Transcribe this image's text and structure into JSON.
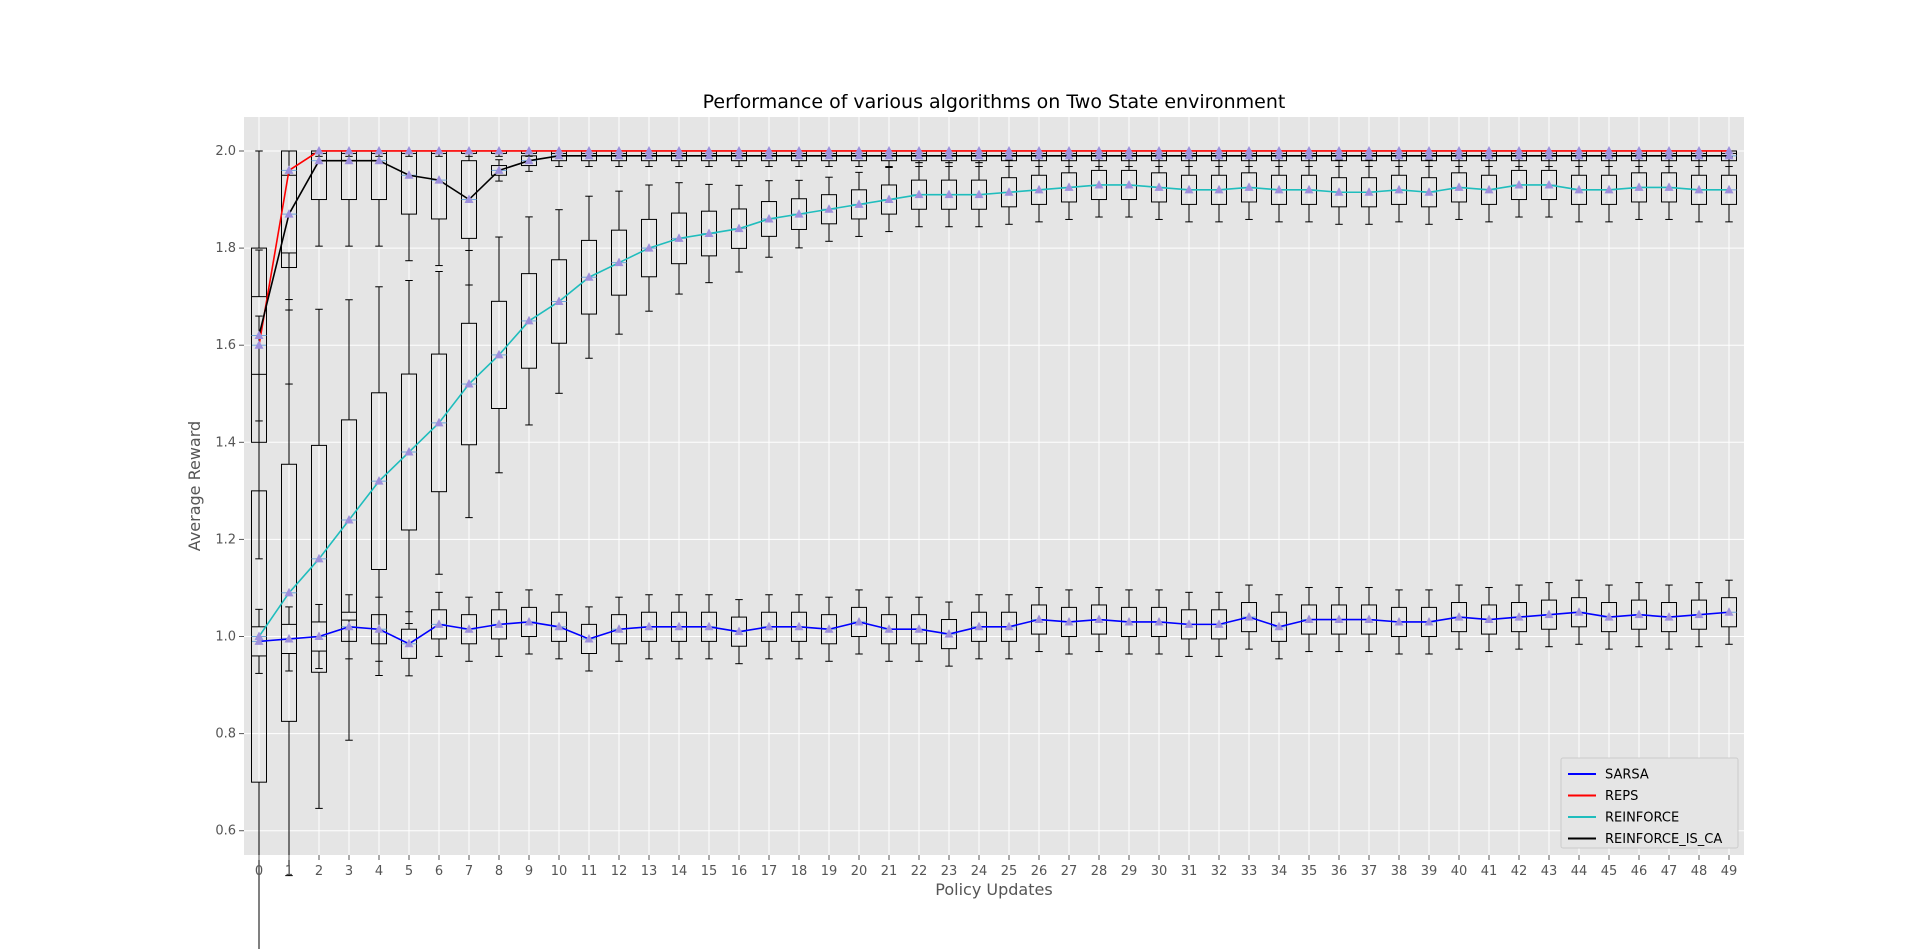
{
  "chart_data": {
    "type": "line",
    "title": "Performance of various algorithms on Two State environment",
    "xlabel": "Policy Updates",
    "ylabel": "Average Reward",
    "x": [
      0,
      1,
      2,
      3,
      4,
      5,
      6,
      7,
      8,
      9,
      10,
      11,
      12,
      13,
      14,
      15,
      16,
      17,
      18,
      19,
      20,
      21,
      22,
      23,
      24,
      25,
      26,
      27,
      28,
      29,
      30,
      31,
      32,
      33,
      34,
      35,
      36,
      37,
      38,
      39,
      40,
      41,
      42,
      43,
      44,
      45,
      46,
      47,
      48,
      49
    ],
    "ylim": [
      0.55,
      2.07
    ],
    "yticks": [
      0.6,
      0.8,
      1.0,
      1.2,
      1.4,
      1.6,
      1.8,
      2.0
    ],
    "grid": true,
    "background": "#e5e5e5",
    "legend_position": "bottom-right",
    "boxplots_per_x": true,
    "mean_marker": "triangle",
    "mean_marker_color": "#9e90dd",
    "median_color": "#6fa8dc",
    "series": [
      {
        "name": "SARSA",
        "color": "#0000ff",
        "values": [
          0.99,
          0.995,
          1.0,
          1.02,
          1.015,
          0.985,
          1.025,
          1.015,
          1.025,
          1.03,
          1.02,
          0.995,
          1.015,
          1.02,
          1.02,
          1.02,
          1.01,
          1.02,
          1.02,
          1.015,
          1.03,
          1.015,
          1.015,
          1.005,
          1.02,
          1.02,
          1.035,
          1.03,
          1.035,
          1.03,
          1.03,
          1.025,
          1.025,
          1.04,
          1.02,
          1.035,
          1.035,
          1.035,
          1.03,
          1.03,
          1.04,
          1.035,
          1.04,
          1.045,
          1.05,
          1.04,
          1.045,
          1.04,
          1.045,
          1.05
        ]
      },
      {
        "name": "REPS",
        "color": "#ff0000",
        "values": [
          1.6,
          1.96,
          2.0,
          2.0,
          2.0,
          2.0,
          2.0,
          2.0,
          2.0,
          2.0,
          2.0,
          2.0,
          2.0,
          2.0,
          2.0,
          2.0,
          2.0,
          2.0,
          2.0,
          2.0,
          2.0,
          2.0,
          2.0,
          2.0,
          2.0,
          2.0,
          2.0,
          2.0,
          2.0,
          2.0,
          2.0,
          2.0,
          2.0,
          2.0,
          2.0,
          2.0,
          2.0,
          2.0,
          2.0,
          2.0,
          2.0,
          2.0,
          2.0,
          2.0,
          2.0,
          2.0,
          2.0,
          2.0,
          2.0,
          2.0
        ]
      },
      {
        "name": "REINFORCE",
        "color": "#1fbdbd",
        "values": [
          1.0,
          1.09,
          1.16,
          1.24,
          1.32,
          1.38,
          1.44,
          1.52,
          1.58,
          1.65,
          1.69,
          1.74,
          1.77,
          1.8,
          1.82,
          1.83,
          1.84,
          1.86,
          1.87,
          1.88,
          1.89,
          1.9,
          1.91,
          1.91,
          1.91,
          1.915,
          1.92,
          1.925,
          1.93,
          1.93,
          1.925,
          1.92,
          1.92,
          1.925,
          1.92,
          1.92,
          1.915,
          1.915,
          1.92,
          1.915,
          1.925,
          1.92,
          1.93,
          1.93,
          1.92,
          1.92,
          1.925,
          1.925,
          1.92,
          1.92
        ]
      },
      {
        "name": "REINFORCE_IS_CA",
        "color": "#000000",
        "values": [
          1.62,
          1.87,
          1.98,
          1.98,
          1.98,
          1.95,
          1.94,
          1.9,
          1.96,
          1.98,
          1.99,
          1.99,
          1.99,
          1.99,
          1.99,
          1.99,
          1.99,
          1.99,
          1.99,
          1.99,
          1.99,
          1.99,
          1.99,
          1.99,
          1.99,
          1.99,
          1.99,
          1.99,
          1.99,
          1.99,
          1.99,
          1.99,
          1.99,
          1.99,
          1.99,
          1.99,
          1.99,
          1.99,
          1.99,
          1.99,
          1.99,
          1.99,
          1.99,
          1.99,
          1.99,
          1.99,
          1.99,
          1.99,
          1.99,
          1.99
        ]
      }
    ]
  }
}
